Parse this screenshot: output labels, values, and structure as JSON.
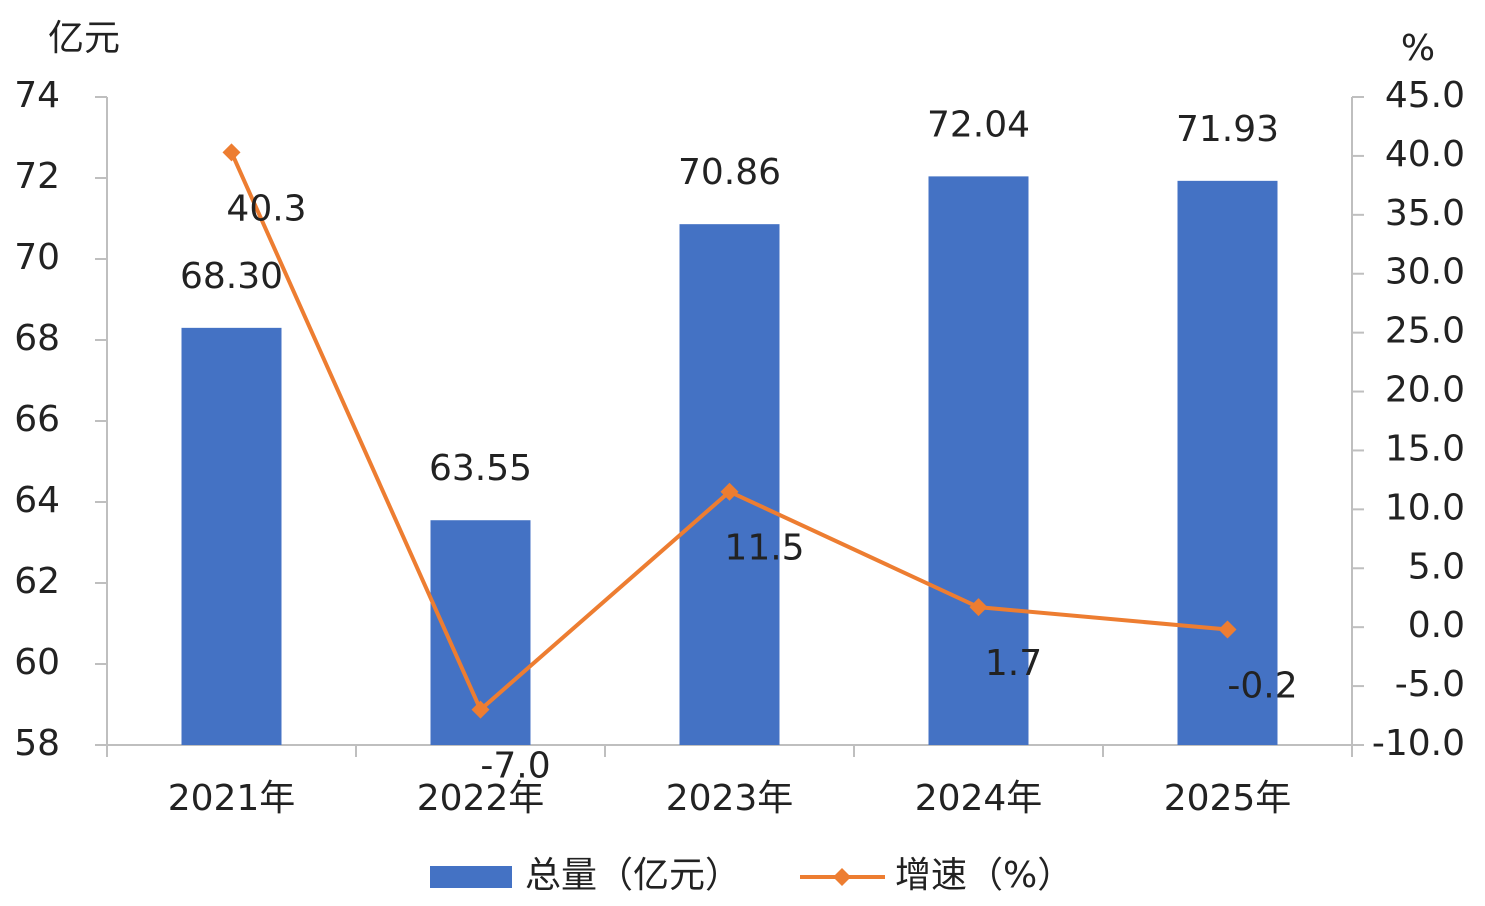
{
  "chart_data": {
    "type": "bar",
    "y_label": "亿元",
    "y2_label": "%",
    "categories": [
      "2021年",
      "2022年",
      "2023年",
      "2024年",
      "2025年"
    ],
    "series": [
      {
        "name": "总量（亿元）",
        "type": "bar",
        "color": "#4472c4",
        "values": [
          68.3,
          63.55,
          70.86,
          72.04,
          71.93
        ],
        "value_labels": [
          "68.30",
          "63.55",
          "70.86",
          "72.04",
          "71.93"
        ]
      },
      {
        "name": "增速（%）",
        "type": "line",
        "axis": "y2",
        "color": "#ed7d31",
        "values": [
          40.3,
          -7.0,
          11.5,
          1.7,
          -0.2
        ],
        "value_labels": [
          "40.3",
          "-7.0",
          "11.5",
          "1.7",
          "-0.2"
        ]
      }
    ],
    "ylim": [
      58,
      74
    ],
    "yticks": [
      58,
      60,
      62,
      64,
      66,
      68,
      70,
      72,
      74
    ],
    "y2lim": [
      -10,
      45
    ],
    "y2ticks": [
      {
        "value": -10,
        "label": "-10.0"
      },
      {
        "value": -5,
        "label": "-5.0"
      },
      {
        "value": 0,
        "label": "0.0"
      },
      {
        "value": 5,
        "label": "5.0"
      },
      {
        "value": 10,
        "label": "10.0"
      },
      {
        "value": 15,
        "label": "15.0"
      },
      {
        "value": 20,
        "label": "20.0"
      },
      {
        "value": 25,
        "label": "25.0"
      },
      {
        "value": 30,
        "label": "30.0"
      },
      {
        "value": 35,
        "label": "35.0"
      },
      {
        "value": 40,
        "label": "40.0"
      },
      {
        "value": 45,
        "label": "45.0"
      }
    ],
    "grid": false,
    "legend": "bottom"
  }
}
